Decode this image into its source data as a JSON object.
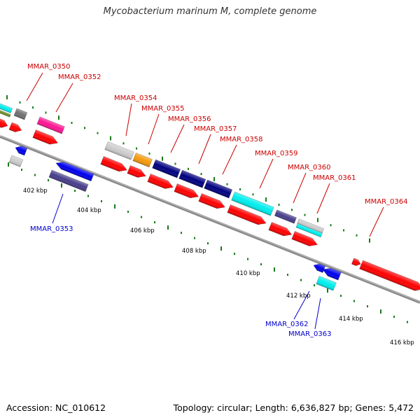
{
  "title": "Mycobacterium marinum M, complete genome",
  "footer": {
    "accession": "Accession: NC_010612",
    "summary": "Topology: circular; Length: 6,636,827 bp; Genes: 5,472"
  },
  "colors": {
    "forward_label": "#cc0000",
    "reverse_label": "#0000cc",
    "backbone": "#8a8a8a",
    "tick": "#1a7a1a",
    "cds_red": "#ff0000",
    "cds_blue": "#0000ee",
    "cds_navy": "#000080",
    "cds_slate": "#483d8b",
    "cds_cyan": "#00eeee",
    "cds_grey": "#cccccc",
    "cds_darkgrey": "#707070",
    "cds_orange": "#f59a0a",
    "cds_pink": "#ff1493",
    "cds_olive": "#6b8e23"
  },
  "kbp_labels": [
    "402 kbp",
    "404 kbp",
    "406 kbp",
    "408 kbp",
    "410 kbp",
    "412 kbp",
    "414 kbp",
    "416 kbp"
  ],
  "gene_labels": {
    "forward": [
      "MMAR_0350",
      "MMAR_0352",
      "MMAR_0354",
      "MMAR_0355",
      "MMAR_0356",
      "MMAR_0357",
      "MMAR_0358",
      "MMAR_0359",
      "MMAR_0360",
      "MMAR_0361",
      "MMAR_0364"
    ],
    "reverse": [
      "MMAR_0353",
      "MMAR_0362",
      "MMAR_0363"
    ]
  }
}
